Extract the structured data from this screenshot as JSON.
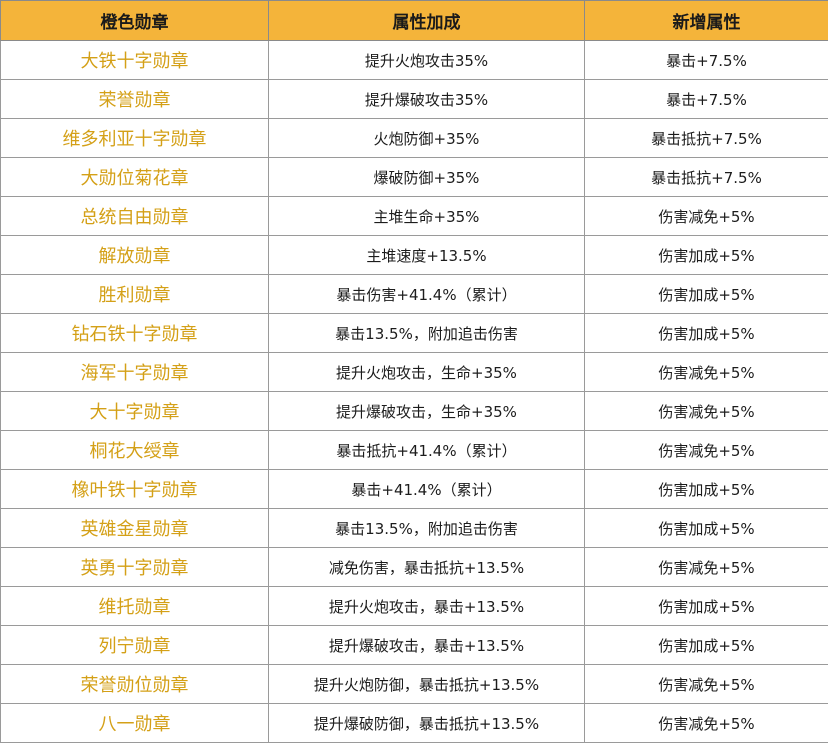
{
  "headers": {
    "col1": "橙色勋章",
    "col2": "属性加成",
    "col3": "新增属性"
  },
  "rows": [
    {
      "name": "大铁十字勋章",
      "bonus": "提升火炮攻击35%",
      "new_attr": "暴击+7.5%"
    },
    {
      "name": "荣誉勋章",
      "bonus": "提升爆破攻击35%",
      "new_attr": "暴击+7.5%"
    },
    {
      "name": "维多利亚十字勋章",
      "bonus": "火炮防御+35%",
      "new_attr": "暴击抵抗+7.5%"
    },
    {
      "name": "大勋位菊花章",
      "bonus": "爆破防御+35%",
      "new_attr": "暴击抵抗+7.5%"
    },
    {
      "name": "总统自由勋章",
      "bonus": "主堆生命+35%",
      "new_attr": "伤害减免+5%"
    },
    {
      "name": "解放勋章",
      "bonus": "主堆速度+13.5%",
      "new_attr": "伤害加成+5%"
    },
    {
      "name": "胜利勋章",
      "bonus": "暴击伤害+41.4%（累计）",
      "new_attr": "伤害加成+5%"
    },
    {
      "name": "钻石铁十字勋章",
      "bonus": "暴击13.5%，附加追击伤害",
      "new_attr": "伤害加成+5%"
    },
    {
      "name": "海军十字勋章",
      "bonus": "提升火炮攻击，生命+35%",
      "new_attr": "伤害减免+5%"
    },
    {
      "name": "大十字勋章",
      "bonus": "提升爆破攻击，生命+35%",
      "new_attr": "伤害减免+5%"
    },
    {
      "name": "桐花大绶章",
      "bonus": "暴击抵抗+41.4%（累计）",
      "new_attr": "伤害减免+5%"
    },
    {
      "name": "橡叶铁十字勋章",
      "bonus": "暴击+41.4%（累计）",
      "new_attr": "伤害加成+5%"
    },
    {
      "name": "英雄金星勋章",
      "bonus": "暴击13.5%，附加追击伤害",
      "new_attr": "伤害加成+5%"
    },
    {
      "name": "英勇十字勋章",
      "bonus": "减免伤害，暴击抵抗+13.5%",
      "new_attr": "伤害减免+5%"
    },
    {
      "name": "维托勋章",
      "bonus": "提升火炮攻击，暴击+13.5%",
      "new_attr": "伤害加成+5%"
    },
    {
      "name": "列宁勋章",
      "bonus": "提升爆破攻击，暴击+13.5%",
      "new_attr": "伤害加成+5%"
    },
    {
      "name": "荣誉勋位勋章",
      "bonus": "提升火炮防御，暴击抵抗+13.5%",
      "new_attr": "伤害减免+5%"
    },
    {
      "name": "八一勋章",
      "bonus": "提升爆破防御，暴击抵抗+13.5%",
      "new_attr": "伤害减免+5%"
    }
  ],
  "colors": {
    "header_bg": "#f4b43a",
    "medal_name_text": "#d4a017",
    "border": "#9a9a9a"
  }
}
